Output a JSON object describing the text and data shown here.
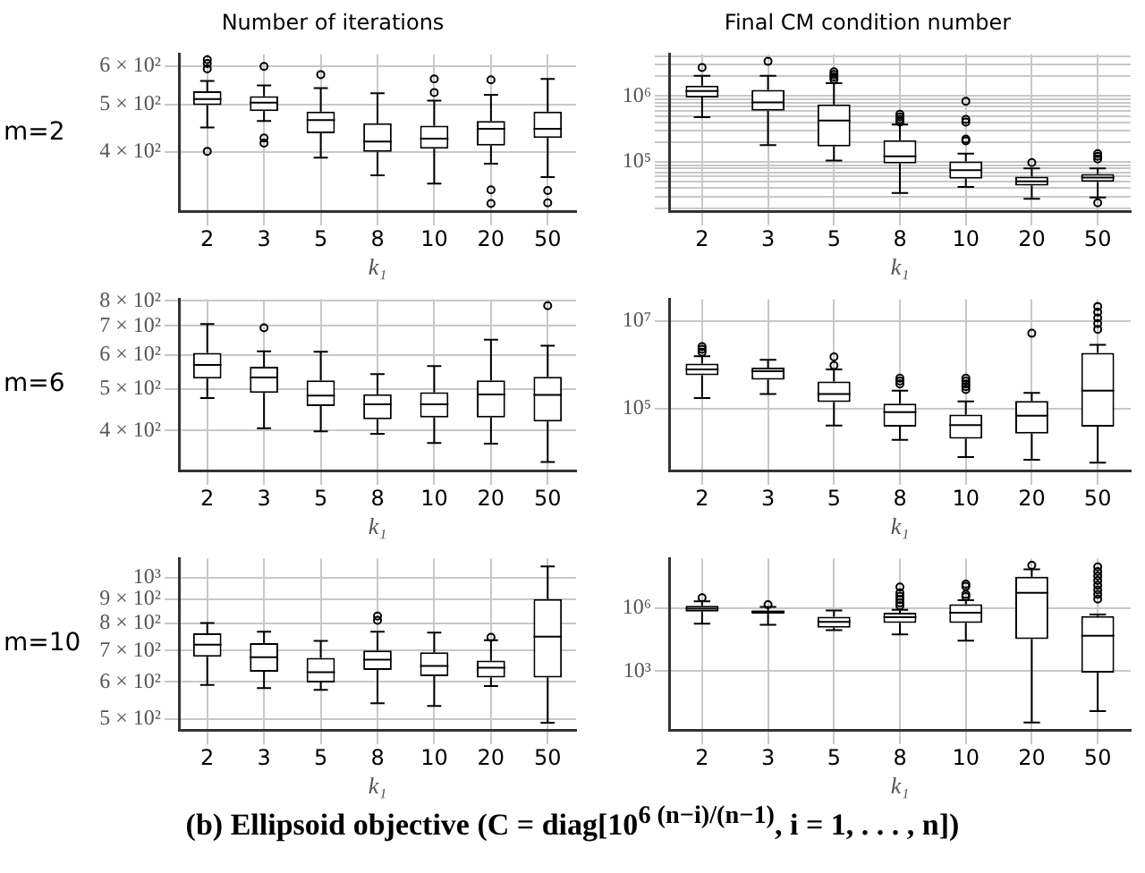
{
  "chart_data": [
    {
      "type": "box",
      "title": "Number of iterations",
      "ylabel": "m=2",
      "xlabel": "k₁",
      "categories": [
        "2",
        "3",
        "5",
        "8",
        "10",
        "20",
        "50"
      ],
      "log": true,
      "grid": true,
      "ylim": [
        302,
        635
      ],
      "yticks": [
        {
          "value": 400,
          "label": "4 × 10²"
        },
        {
          "value": 500,
          "label": "5 × 10²"
        },
        {
          "value": 600,
          "label": "6 × 10²"
        }
      ],
      "boxes": [
        {
          "low": 449,
          "q1": 499,
          "median": 514,
          "q3": 533,
          "high": 560,
          "outliers": [
            619,
            608,
            593,
            401
          ]
        },
        {
          "low": 463,
          "q1": 485,
          "median": 505,
          "q3": 521,
          "high": 548,
          "outliers": [
            600,
            427,
            417
          ]
        },
        {
          "low": 389,
          "q1": 437,
          "median": 465,
          "q3": 484,
          "high": 541,
          "outliers": [
            577
          ]
        },
        {
          "low": 358,
          "q1": 400,
          "median": 420,
          "q3": 458,
          "high": 528
        },
        {
          "low": 344,
          "q1": 406,
          "median": 426,
          "q3": 453,
          "high": 510,
          "outliers": [
            565,
            530
          ]
        },
        {
          "low": 378,
          "q1": 412,
          "median": 446,
          "q3": 463,
          "high": 524,
          "outliers": [
            563,
            334,
            313
          ]
        },
        {
          "low": 355,
          "q1": 427,
          "median": 446,
          "q3": 484,
          "high": 565,
          "outliers": [
            333,
            314
          ]
        }
      ]
    },
    {
      "type": "box",
      "title": "Final CM condition number",
      "xlabel": "k₁",
      "categories": [
        "2",
        "3",
        "5",
        "8",
        "10",
        "20",
        "50"
      ],
      "log": true,
      "grid": true,
      "ylim": [
        18000,
        4300000
      ],
      "yticks": [
        {
          "value": 20000,
          "label": null
        },
        {
          "value": 30000,
          "label": null
        },
        {
          "value": 40000,
          "label": null
        },
        {
          "value": 50000,
          "label": null
        },
        {
          "value": 60000,
          "label": null
        },
        {
          "value": 70000,
          "label": null
        },
        {
          "value": 80000,
          "label": null
        },
        {
          "value": 90000,
          "label": null
        },
        {
          "value": 100000,
          "label": "10⁵"
        },
        {
          "value": 200000,
          "label": null
        },
        {
          "value": 300000,
          "label": null
        },
        {
          "value": 400000,
          "label": null
        },
        {
          "value": 500000,
          "label": null
        },
        {
          "value": 600000,
          "label": null
        },
        {
          "value": 700000,
          "label": null
        },
        {
          "value": 800000,
          "label": null
        },
        {
          "value": 900000,
          "label": null
        },
        {
          "value": 1000000,
          "label": "10⁶"
        },
        {
          "value": 2000000,
          "label": null
        },
        {
          "value": 3000000,
          "label": null
        },
        {
          "value": 4000000,
          "label": null
        }
      ],
      "boxes": [
        {
          "low": 480000,
          "q1": 950000,
          "median": 1200000,
          "q3": 1440000,
          "high": 2030000,
          "outliers": [
            2710000
          ]
        },
        {
          "low": 180000,
          "q1": 600000,
          "median": 800000,
          "q3": 1240000,
          "high": 2030000,
          "outliers": [
            3370000
          ]
        },
        {
          "low": 105000,
          "q1": 172000,
          "median": 426000,
          "q3": 748000,
          "high": 1570000,
          "outliers": [
            2340000,
            2140000,
            1960000,
            1790000
          ]
        },
        {
          "low": 34000,
          "q1": 95000,
          "median": 122000,
          "q3": 214000,
          "high": 369000,
          "outliers": [
            530000,
            484000,
            442000,
            404000
          ]
        },
        {
          "low": 42000,
          "q1": 56000,
          "median": 75000,
          "q3": 102000,
          "high": 134000,
          "outliers": [
            835000,
            442000,
            404000,
            222000,
            210000
          ]
        },
        {
          "low": 27600,
          "q1": 44000,
          "median": 51000,
          "q3": 60000,
          "high": 80000,
          "outliers": [
            98000
          ]
        },
        {
          "low": 29000,
          "q1": 50000,
          "median": 58000,
          "q3": 66000,
          "high": 80000,
          "outliers": [
            134000,
            122000,
            111000,
            24000
          ]
        }
      ]
    },
    {
      "type": "box",
      "ylabel": "m=6",
      "xlabel": "k₁",
      "categories": [
        "2",
        "3",
        "5",
        "8",
        "10",
        "20",
        "50"
      ],
      "log": true,
      "grid": true,
      "ylim": [
        323,
        808
      ],
      "yticks": [
        {
          "value": 400,
          "label": "4 × 10²"
        },
        {
          "value": 500,
          "label": "5 × 10²"
        },
        {
          "value": 600,
          "label": "6 × 10²"
        },
        {
          "value": 700,
          "label": "7 × 10²"
        },
        {
          "value": 800,
          "label": "8 × 10²"
        }
      ],
      "boxes": [
        {
          "low": 476,
          "q1": 528,
          "median": 568,
          "q3": 606,
          "high": 707
        },
        {
          "low": 405,
          "q1": 489,
          "median": 531,
          "q3": 563,
          "high": 611,
          "outliers": [
            693
          ]
        },
        {
          "low": 398,
          "q1": 456,
          "median": 482,
          "q3": 523,
          "high": 610
        },
        {
          "low": 393,
          "q1": 425,
          "median": 460,
          "q3": 486,
          "high": 541
        },
        {
          "low": 374,
          "q1": 429,
          "median": 460,
          "q3": 491,
          "high": 565
        },
        {
          "low": 373,
          "q1": 429,
          "median": 485,
          "q3": 523,
          "high": 650
        },
        {
          "low": 338,
          "q1": 420,
          "median": 484,
          "q3": 533,
          "high": 630,
          "outliers": [
            780
          ]
        }
      ]
    },
    {
      "type": "box",
      "xlabel": "k₁",
      "categories": [
        "2",
        "3",
        "5",
        "8",
        "10",
        "20",
        "50"
      ],
      "log": true,
      "grid": true,
      "ylim": [
        4000,
        31000000
      ],
      "yticks": [
        {
          "value": 100000,
          "label": "10⁵"
        },
        {
          "value": 10000000,
          "label": "10⁷"
        }
      ],
      "boxes": [
        {
          "low": 176000,
          "q1": 580000,
          "median": 790000,
          "q3": 1060000,
          "high": 1570000,
          "outliers": [
            2600000,
            2250000,
            1930000
          ]
        },
        {
          "low": 218000,
          "q1": 460000,
          "median": 720000,
          "q3": 860000,
          "high": 1300000
        },
        {
          "low": 42000,
          "q1": 143000,
          "median": 218000,
          "q3": 420000,
          "high": 790000,
          "outliers": [
            1520000,
            970000
          ]
        },
        {
          "low": 19900,
          "q1": 39500,
          "median": 84000,
          "q3": 131000,
          "high": 260000,
          "outliers": [
            500000,
            430000,
            370000
          ]
        },
        {
          "low": 8100,
          "q1": 21000,
          "median": 43000,
          "q3": 74000,
          "high": 148000,
          "outliers": [
            500000,
            430000,
            370000,
            320000,
            276000
          ]
        },
        {
          "low": 7000,
          "q1": 27600,
          "median": 70000,
          "q3": 152000,
          "high": 230000,
          "outliers": [
            5200000
          ]
        },
        {
          "low": 6000,
          "q1": 39500,
          "median": 260000,
          "q3": 1870000,
          "high": 2850000,
          "outliers": [
            21100000,
            15700000,
            11600000,
            8600000,
            6400000
          ]
        }
      ]
    },
    {
      "type": "box",
      "ylabel": "m=10",
      "xlabel": "k₁",
      "categories": [
        "2",
        "3",
        "5",
        "8",
        "10",
        "20",
        "50"
      ],
      "log": true,
      "grid": true,
      "ylim": [
        474,
        1100
      ],
      "yticks": [
        {
          "value": 500,
          "label": "5 × 10²"
        },
        {
          "value": 600,
          "label": "6 × 10²"
        },
        {
          "value": 700,
          "label": "7 × 10²"
        },
        {
          "value": 800,
          "label": "8 × 10²"
        },
        {
          "value": 900,
          "label": "9 × 10²"
        },
        {
          "value": 1000,
          "label": "10³"
        }
      ],
      "boxes": [
        {
          "low": 591,
          "q1": 679,
          "median": 720,
          "q3": 762,
          "high": 801
        },
        {
          "low": 582,
          "q1": 631,
          "median": 677,
          "q3": 726,
          "high": 768
        },
        {
          "low": 577,
          "q1": 598,
          "median": 629,
          "q3": 675,
          "high": 734
        },
        {
          "low": 540,
          "q1": 636,
          "median": 669,
          "q3": 700,
          "high": 768,
          "outliers": [
            829,
            812
          ]
        },
        {
          "low": 533,
          "q1": 617,
          "median": 649,
          "q3": 694,
          "high": 764
        },
        {
          "low": 588,
          "q1": 613,
          "median": 643,
          "q3": 666,
          "high": 736,
          "outliers": [
            747
          ]
        },
        {
          "low": 491,
          "q1": 613,
          "median": 749,
          "q3": 901,
          "high": 1058
        }
      ]
    },
    {
      "type": "box",
      "xlabel": "k₁",
      "categories": [
        "2",
        "3",
        "5",
        "8",
        "10",
        "20",
        "50"
      ],
      "log": true,
      "grid": true,
      "ylim": [
        1.6,
        230000000
      ],
      "yticks": [
        {
          "value": 1000,
          "label": "10³"
        },
        {
          "value": 1000000,
          "label": "10⁶"
        }
      ],
      "boxes": [
        {
          "low": 184000,
          "q1": 690000,
          "median": 940000,
          "q3": 1290000,
          "high": 2120000,
          "outliers": [
            3100000
          ]
        },
        {
          "low": 162000,
          "q1": 530000,
          "median": 690000,
          "q3": 780000,
          "high": 1130000,
          "outliers": [
            1460000
          ]
        },
        {
          "low": 90000,
          "q1": 118000,
          "median": 222000,
          "q3": 390000,
          "high": 780000
        },
        {
          "low": 56000,
          "q1": 196000,
          "median": 367000,
          "q3": 605000,
          "high": 830000,
          "outliers": [
            10200000,
            5400000,
            3700000,
            2560000,
            1760000,
            1290000
          ]
        },
        {
          "low": 28000,
          "q1": 196000,
          "median": 605000,
          "q3": 1550000,
          "high": 2400000,
          "outliers": [
            14000000,
            10800000,
            4500000,
            3500000
          ]
        },
        {
          "low": 3.6,
          "q1": 33600,
          "median": 5400000,
          "q3": 31500000,
          "high": 71000000,
          "outliers": [
            110000000
          ]
        },
        {
          "low": 12.6,
          "q1": 840,
          "median": 49000,
          "q3": 415000,
          "high": 500000,
          "outliers": [
            92000000,
            55000000,
            34000000,
            20500000,
            12300000,
            7400000,
            4500000,
            2700000
          ]
        }
      ],
      "annotations": [
        "(b) Ellipsoid objective (C = diag[10$^{6 (n−i)/(n−1)}$, i = 1, . . . , n])"
      ]
    }
  ]
}
